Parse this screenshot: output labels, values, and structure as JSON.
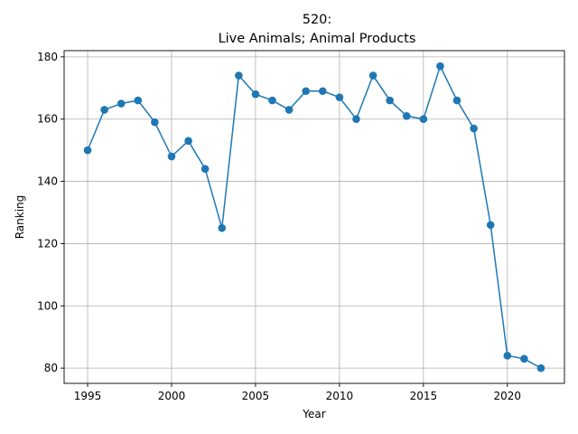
{
  "chart_data": {
    "type": "line",
    "title_line1": "520:",
    "title_line2": "Live Animals; Animal Products",
    "xlabel": "Year",
    "ylabel": "Ranking",
    "xlim": [
      1993.6,
      2023.4
    ],
    "ylim": [
      75.1,
      182.0
    ],
    "xticks": [
      1995,
      2000,
      2005,
      2010,
      2015,
      2020
    ],
    "yticks": [
      80,
      100,
      120,
      140,
      160,
      180
    ],
    "grid": true,
    "series": [
      {
        "color": "#1f77b4",
        "marker": "circle",
        "x": [
          1995,
          1996,
          1997,
          1998,
          1999,
          2000,
          2001,
          2002,
          2003,
          2004,
          2005,
          2006,
          2007,
          2008,
          2009,
          2010,
          2011,
          2012,
          2013,
          2014,
          2015,
          2016,
          2017,
          2018,
          2019,
          2020,
          2021,
          2022
        ],
        "y": [
          150,
          163,
          165,
          166,
          159,
          148,
          153,
          144,
          125,
          174,
          168,
          166,
          163,
          169,
          169,
          167,
          160,
          174,
          166,
          161,
          160,
          177,
          166,
          157,
          126,
          84,
          83,
          80
        ]
      }
    ]
  }
}
